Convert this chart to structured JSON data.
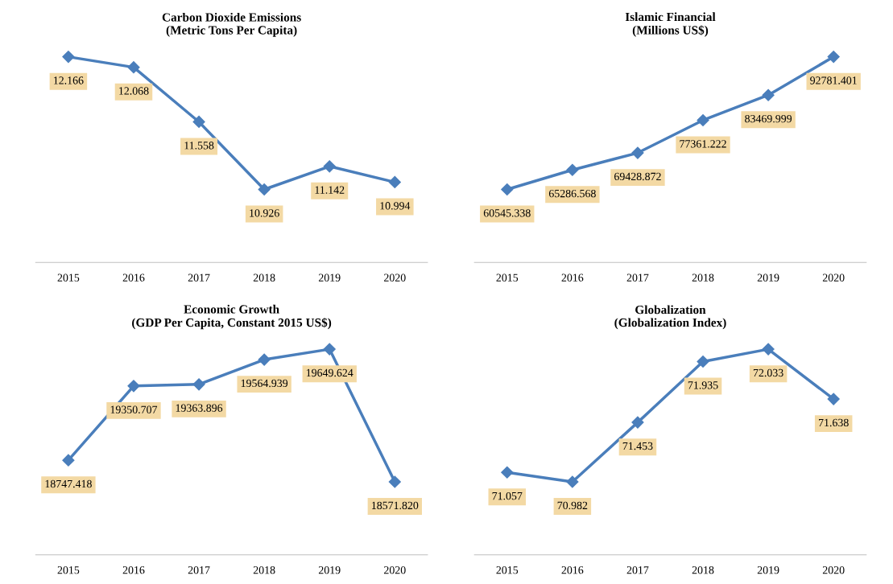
{
  "chart_data": [
    {
      "type": "line",
      "title": "Carbon Dioxide Emissions\n(Metric Tons Per Capita)",
      "categories": [
        "2015",
        "2016",
        "2017",
        "2018",
        "2019",
        "2020"
      ],
      "series": [
        {
          "color": "#4a7ebb",
          "values": [
            12.166,
            12.068,
            11.558,
            10.926,
            11.142,
            10.994
          ]
        }
      ],
      "marker": "diamond",
      "data_labels": true,
      "tick_labels": "x",
      "grid": false
    },
    {
      "type": "line",
      "title": "Islamic Financial\n(Millions US$)",
      "categories": [
        "2015",
        "2016",
        "2017",
        "2018",
        "2019",
        "2020"
      ],
      "series": [
        {
          "color": "#4a7ebb",
          "values": [
            60545.338,
            65286.568,
            69428.872,
            77361.222,
            83469.999,
            92781.401
          ]
        }
      ],
      "marker": "diamond",
      "data_labels": true,
      "tick_labels": "x",
      "grid": false
    },
    {
      "type": "line",
      "title": "Economic Growth\n(GDP Per Capita, Constant 2015 US$)",
      "categories": [
        "2015",
        "2016",
        "2017",
        "2018",
        "2019",
        "2020"
      ],
      "series": [
        {
          "color": "#4a7ebb",
          "values": [
            18747.418,
            19350.707,
            19363.896,
            19564.939,
            19649.624,
            18571.82
          ],
          "value_labels": [
            "18747.418",
            "19350.707",
            "19363.896",
            "19564.939",
            "19649.624",
            "18571.820"
          ]
        }
      ],
      "marker": "diamond",
      "tick_labels": "x",
      "grid": false
    },
    {
      "type": "line",
      "title": "Globalization\n(Globalization Index)",
      "categories": [
        "2015",
        "2016",
        "2017",
        "2018",
        "2019",
        "2020"
      ],
      "series": [
        {
          "color": "#4a7ebb",
          "values": [
            71.057,
            70.982,
            71.453,
            71.935,
            72.033,
            71.638
          ]
        }
      ],
      "marker": "diamond",
      "data_labels": true,
      "tick_labels": "x",
      "grid": false
    }
  ]
}
